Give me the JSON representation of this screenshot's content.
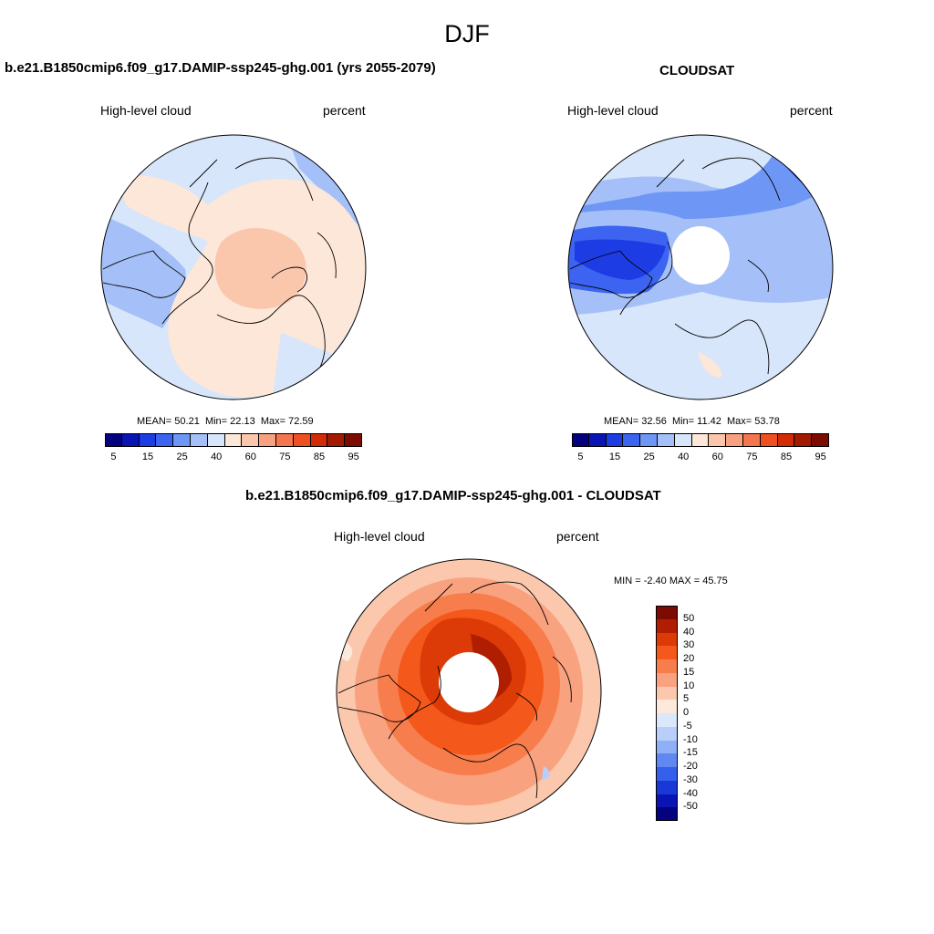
{
  "figure": {
    "season": "DJF",
    "left_panel_title": "b.e21.B1850cmip6.f09_g17.DAMIP-ssp245-ghg.001 (yrs 2055-2079)",
    "right_panel_title": "CLOUDSAT",
    "diff_panel_title": "b.e21.B1850cmip6.f09_g17.DAMIP-ssp245-ghg.001 - CLOUDSAT"
  },
  "panels": {
    "left": {
      "variable": "High-level cloud",
      "units": "percent",
      "mean_label": "MEAN=",
      "mean": "50.21",
      "min_label": "Min=",
      "min": "22.13",
      "max_label": "Max=",
      "max": "72.59"
    },
    "right": {
      "variable": "High-level cloud",
      "units": "percent",
      "mean_label": "MEAN=",
      "mean": "32.56",
      "min_label": "Min=",
      "min": "11.42",
      "max_label": "Max=",
      "max": "53.78"
    },
    "diff": {
      "variable": "High-level cloud",
      "units": "percent",
      "stats_text": "MIN =  -2.40 MAX =  45.75"
    }
  },
  "colorbars": {
    "abs_colors": [
      "#04027e",
      "#0a14b4",
      "#1e3ce4",
      "#3c64f0",
      "#6e96f5",
      "#a5c0f8",
      "#d7e6fa",
      "#fde7d8",
      "#fac7ad",
      "#f7a180",
      "#f4764f",
      "#ee5023",
      "#d22b06",
      "#a31a02",
      "#7c0c02"
    ],
    "abs_ticks": [
      "5",
      "15",
      "25",
      "40",
      "60",
      "75",
      "85",
      "95"
    ],
    "diff_colors": [
      "#7c0c02",
      "#b01e02",
      "#dc3a06",
      "#f4581a",
      "#f77d4c",
      "#f9a27f",
      "#fbc8ad",
      "#fde9dc",
      "#dbe8fb",
      "#b9cffa",
      "#8fb0f6",
      "#5f88f1",
      "#3460eb",
      "#1938d8",
      "#0a14b4",
      "#04027e"
    ],
    "diff_ticks": [
      "50",
      "40",
      "30",
      "20",
      "15",
      "10",
      "5",
      "0",
      "-5",
      "-10",
      "-15",
      "-20",
      "-30",
      "-40",
      "-50"
    ]
  },
  "chart_data": [
    {
      "type": "heatmap",
      "title": "b.e21.B1850cmip6.f09_g17.DAMIP-ssp245-ghg.001 (yrs 2055-2079)",
      "projection": "north polar stereographic",
      "variable": "High-level cloud",
      "units": "percent",
      "levels": [
        5,
        10,
        15,
        20,
        25,
        30,
        40,
        50,
        60,
        70,
        75,
        80,
        85,
        90,
        95
      ],
      "mean": 50.21,
      "min": 22.13,
      "max": 72.59
    },
    {
      "type": "heatmap",
      "title": "CLOUDSAT",
      "projection": "north polar stereographic",
      "variable": "High-level cloud",
      "units": "percent",
      "levels": [
        5,
        10,
        15,
        20,
        25,
        30,
        40,
        50,
        60,
        70,
        75,
        80,
        85,
        90,
        95
      ],
      "mean": 32.56,
      "min": 11.42,
      "max": 53.78
    },
    {
      "type": "heatmap",
      "title": "b.e21.B1850cmip6.f09_g17.DAMIP-ssp245-ghg.001 - CLOUDSAT",
      "projection": "north polar stereographic",
      "variable": "High-level cloud",
      "units": "percent",
      "levels": [
        -50,
        -40,
        -30,
        -20,
        -15,
        -10,
        -5,
        0,
        5,
        10,
        15,
        20,
        30,
        40,
        50
      ],
      "min": -2.4,
      "max": 45.75
    }
  ]
}
